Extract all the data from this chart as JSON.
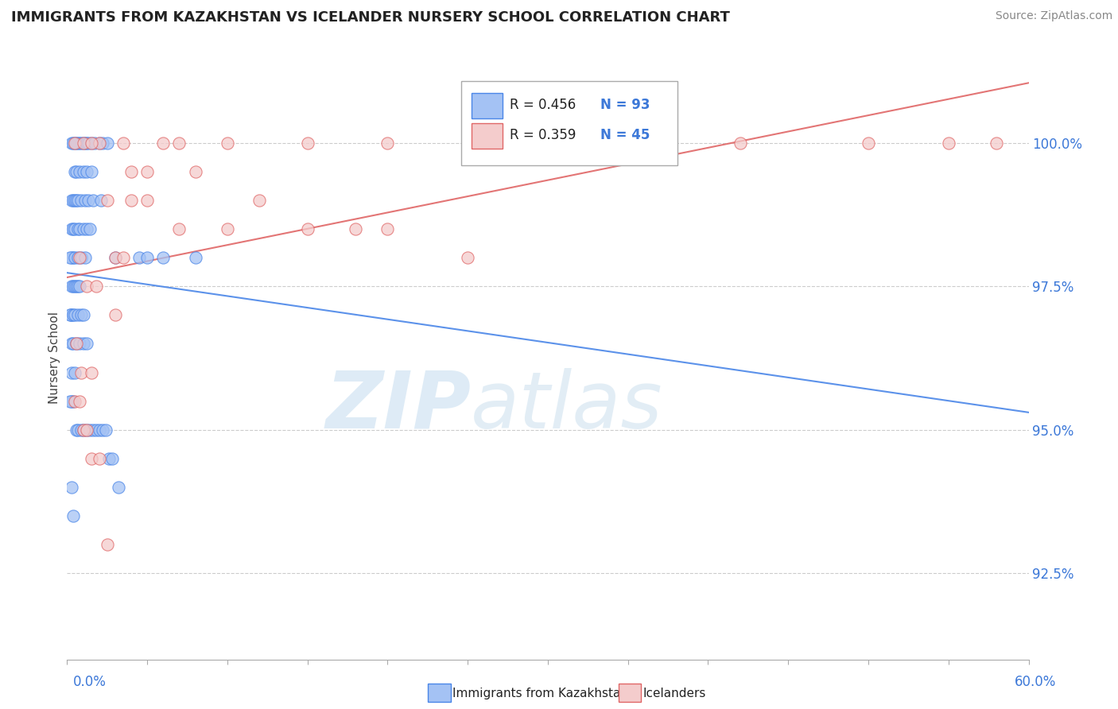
{
  "title": "IMMIGRANTS FROM KAZAKHSTAN VS ICELANDER NURSERY SCHOOL CORRELATION CHART",
  "source": "Source: ZipAtlas.com",
  "ylabel": "Nursery School",
  "ytick_labels": [
    "92.5%",
    "95.0%",
    "97.5%",
    "100.0%"
  ],
  "ytick_values": [
    92.5,
    95.0,
    97.5,
    100.0
  ],
  "xmin": 0.0,
  "xmax": 60.0,
  "ymin": 91.0,
  "ymax": 101.5,
  "legend_r1": "R = 0.456",
  "legend_n1": "N = 93",
  "legend_r2": "R = 0.359",
  "legend_n2": "N = 45",
  "color_blue": "#a4c2f4",
  "color_pink": "#f4cccc",
  "color_blue_line": "#4a86e8",
  "color_pink_line": "#e06666",
  "watermark_zip": "ZIP",
  "watermark_atlas": "atlas",
  "blue_x": [
    0.3,
    0.5,
    0.6,
    0.7,
    0.8,
    0.9,
    1.0,
    1.1,
    1.2,
    1.3,
    1.5,
    1.7,
    2.0,
    2.2,
    2.5,
    0.4,
    0.5,
    0.6,
    0.8,
    1.0,
    1.2,
    1.5,
    0.3,
    0.4,
    0.5,
    0.6,
    0.7,
    0.9,
    1.1,
    1.3,
    1.6,
    2.1,
    0.3,
    0.4,
    0.5,
    0.7,
    0.8,
    1.0,
    1.2,
    1.4,
    0.4,
    0.3,
    0.2,
    0.5,
    0.7,
    0.9,
    1.1,
    3.0,
    4.5,
    5.0,
    6.0,
    8.0,
    0.3,
    0.4,
    0.5,
    0.6,
    0.7,
    0.8,
    0.3,
    0.25,
    0.2,
    0.4,
    0.5,
    0.7,
    0.9,
    1.0,
    0.3,
    0.4,
    0.6,
    0.8,
    1.0,
    1.2,
    0.3,
    0.5,
    0.4,
    0.3,
    0.2,
    0.6,
    0.7,
    0.9,
    1.0,
    1.2,
    1.4,
    1.6,
    1.8,
    2.0,
    2.2,
    2.4,
    2.6,
    2.8,
    3.2,
    0.3,
    0.4
  ],
  "blue_y": [
    100.0,
    100.0,
    100.0,
    100.0,
    100.0,
    100.0,
    100.0,
    100.0,
    100.0,
    100.0,
    100.0,
    100.0,
    100.0,
    100.0,
    100.0,
    100.0,
    99.5,
    99.5,
    99.5,
    99.5,
    99.5,
    99.5,
    99.0,
    99.0,
    99.0,
    99.0,
    99.0,
    99.0,
    99.0,
    99.0,
    99.0,
    99.0,
    98.5,
    98.5,
    98.5,
    98.5,
    98.5,
    98.5,
    98.5,
    98.5,
    98.0,
    98.0,
    98.0,
    98.0,
    98.0,
    98.0,
    98.0,
    98.0,
    98.0,
    98.0,
    98.0,
    98.0,
    97.5,
    97.5,
    97.5,
    97.5,
    97.5,
    97.5,
    97.0,
    97.0,
    97.0,
    97.0,
    97.0,
    97.0,
    97.0,
    97.0,
    96.5,
    96.5,
    96.5,
    96.5,
    96.5,
    96.5,
    96.0,
    96.0,
    95.5,
    95.5,
    95.5,
    95.0,
    95.0,
    95.0,
    95.0,
    95.0,
    95.0,
    95.0,
    95.0,
    95.0,
    95.0,
    95.0,
    94.5,
    94.5,
    94.0,
    94.0,
    93.5
  ],
  "pink_x": [
    0.5,
    2.0,
    3.5,
    6.0,
    10.0,
    15.0,
    20.0,
    28.0,
    35.0,
    42.0,
    50.0,
    55.0,
    58.0,
    1.0,
    1.5,
    4.0,
    8.0,
    12.0,
    18.0,
    2.5,
    5.0,
    7.0,
    10.0,
    15.0,
    20.0,
    25.0,
    0.8,
    1.2,
    1.8,
    3.0,
    0.6,
    0.9,
    1.5,
    0.5,
    0.8,
    1.0,
    1.2,
    1.5,
    2.0,
    2.5,
    3.0,
    3.5,
    4.0,
    5.0,
    7.0
  ],
  "pink_y": [
    100.0,
    100.0,
    100.0,
    100.0,
    100.0,
    100.0,
    100.0,
    100.0,
    100.0,
    100.0,
    100.0,
    100.0,
    100.0,
    100.0,
    100.0,
    99.5,
    99.5,
    99.0,
    98.5,
    99.0,
    99.0,
    98.5,
    98.5,
    98.5,
    98.5,
    98.0,
    98.0,
    97.5,
    97.5,
    97.0,
    96.5,
    96.0,
    96.0,
    95.5,
    95.5,
    95.0,
    95.0,
    94.5,
    94.5,
    93.0,
    98.0,
    98.0,
    99.0,
    99.5,
    100.0
  ]
}
